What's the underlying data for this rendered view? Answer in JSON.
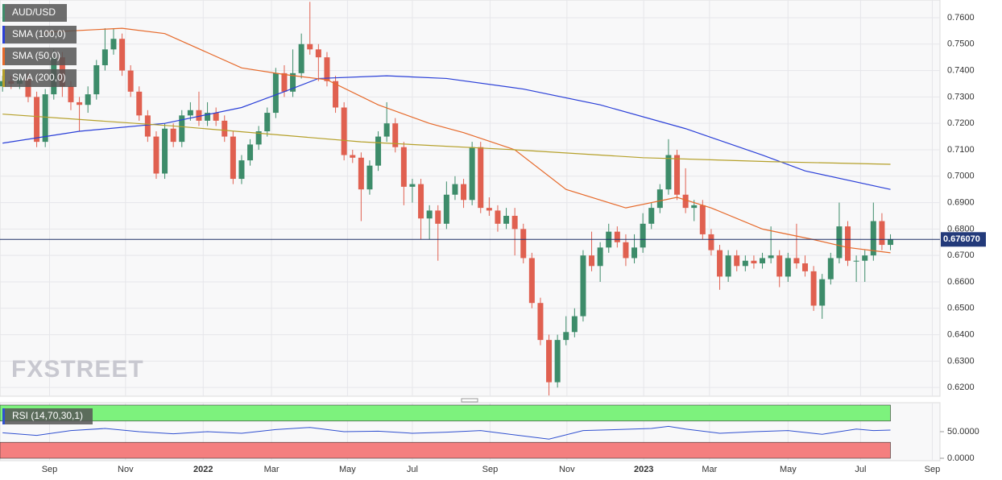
{
  "chart_data": [
    {
      "type": "candlestick",
      "xlim": [
        -0.3,
        109.8
      ],
      "xticks": [
        {
          "value": 5.5,
          "label": "Sep"
        },
        {
          "value": 14.4,
          "label": "Nov"
        },
        {
          "value": 23.5,
          "label": "2022"
        },
        {
          "value": 31.5,
          "label": "Mar"
        },
        {
          "value": 40.4,
          "label": "May"
        },
        {
          "value": 48.0,
          "label": "Jul"
        },
        {
          "value": 57.1,
          "label": "Sep"
        },
        {
          "value": 66.1,
          "label": "Nov"
        },
        {
          "value": 75.1,
          "label": "2023"
        },
        {
          "value": 82.8,
          "label": "Mar"
        },
        {
          "value": 92.0,
          "label": "May"
        },
        {
          "value": 100.5,
          "label": "Jul"
        },
        {
          "value": 108.9,
          "label": "Sep"
        }
      ],
      "ylim": [
        0.6167,
        0.7667
      ],
      "yticks": [
        {
          "value": 0.62,
          "label": "0.6200"
        },
        {
          "value": 0.63,
          "label": "0.6300"
        },
        {
          "value": 0.64,
          "label": "0.6400"
        },
        {
          "value": 0.65,
          "label": "0.6500"
        },
        {
          "value": 0.66,
          "label": "0.6600"
        },
        {
          "value": 0.67,
          "label": "0.6700"
        },
        {
          "value": 0.68,
          "label": "0.6800"
        },
        {
          "value": 0.69,
          "label": "0.6900"
        },
        {
          "value": 0.7,
          "label": "0.7000"
        },
        {
          "value": 0.71,
          "label": "0.7100"
        },
        {
          "value": 0.72,
          "label": "0.7200"
        },
        {
          "value": 0.73,
          "label": "0.7300"
        },
        {
          "value": 0.74,
          "label": "0.7400"
        },
        {
          "value": 0.75,
          "label": "0.7500"
        },
        {
          "value": 0.76,
          "label": "0.7600"
        }
      ],
      "grid": true,
      "watermark": "FXSTREET",
      "last_price": {
        "value": 0.67607,
        "label": "0.676070"
      },
      "series": [
        {
          "name": "AUD/USD",
          "color": "#3d8c6a",
          "up_color": "#3d8c6a",
          "down_color": "#e06050",
          "open": [
            0.734,
            0.736,
            0.735,
            0.737,
            0.73,
            0.713,
            0.731,
            0.745,
            0.734,
            0.728,
            0.727,
            0.731,
            0.742,
            0.748,
            0.752,
            0.74,
            0.732,
            0.723,
            0.715,
            0.701,
            0.718,
            0.713,
            0.723,
            0.725,
            0.721,
            0.724,
            0.721,
            0.715,
            0.699,
            0.706,
            0.712,
            0.717,
            0.724,
            0.739,
            0.732,
            0.739,
            0.75,
            0.748,
            0.745,
            0.736,
            0.726,
            0.708,
            0.707,
            0.695,
            0.704,
            0.715,
            0.72,
            0.711,
            0.696,
            0.697,
            0.684,
            0.687,
            0.682,
            0.693,
            0.697,
            0.691,
            0.711,
            0.688,
            0.687,
            0.682,
            0.685,
            0.68,
            0.669,
            0.652,
            0.638,
            0.622,
            0.638,
            0.641,
            0.647,
            0.67,
            0.666,
            0.673,
            0.679,
            0.675,
            0.669,
            0.673,
            0.682,
            0.688,
            0.695,
            0.708,
            0.693,
            0.688,
            0.689,
            0.678,
            0.672,
            0.662,
            0.67,
            0.666,
            0.668,
            0.667,
            0.669,
            0.67,
            0.662,
            0.669,
            0.667,
            0.664,
            0.651,
            0.661,
            0.669,
            0.681,
            0.668,
            0.668,
            0.67,
            0.683,
            0.674
          ],
          "high": [
            0.738,
            0.738,
            0.739,
            0.739,
            0.732,
            0.733,
            0.748,
            0.747,
            0.736,
            0.73,
            0.734,
            0.744,
            0.756,
            0.756,
            0.754,
            0.742,
            0.734,
            0.725,
            0.717,
            0.72,
            0.72,
            0.725,
            0.728,
            0.732,
            0.728,
            0.726,
            0.723,
            0.717,
            0.708,
            0.714,
            0.719,
            0.726,
            0.741,
            0.742,
            0.748,
            0.754,
            0.766,
            0.75,
            0.747,
            0.738,
            0.728,
            0.71,
            0.709,
            0.706,
            0.717,
            0.728,
            0.722,
            0.713,
            0.699,
            0.699,
            0.689,
            0.689,
            0.698,
            0.7,
            0.699,
            0.713,
            0.713,
            0.692,
            0.689,
            0.688,
            0.688,
            0.682,
            0.671,
            0.654,
            0.64,
            0.64,
            0.647,
            0.65,
            0.672,
            0.679,
            0.675,
            0.682,
            0.681,
            0.678,
            0.678,
            0.686,
            0.69,
            0.697,
            0.714,
            0.71,
            0.703,
            0.691,
            0.691,
            0.68,
            0.674,
            0.672,
            0.672,
            0.67,
            0.67,
            0.671,
            0.681,
            0.672,
            0.671,
            0.682,
            0.67,
            0.666,
            0.663,
            0.671,
            0.69,
            0.683,
            0.67,
            0.672,
            0.69,
            0.686,
            0.678
          ],
          "low": [
            0.732,
            0.733,
            0.733,
            0.728,
            0.711,
            0.711,
            0.729,
            0.73,
            0.725,
            0.717,
            0.724,
            0.729,
            0.74,
            0.746,
            0.738,
            0.73,
            0.721,
            0.713,
            0.699,
            0.699,
            0.711,
            0.711,
            0.721,
            0.719,
            0.719,
            0.719,
            0.713,
            0.697,
            0.697,
            0.704,
            0.71,
            0.715,
            0.722,
            0.73,
            0.73,
            0.737,
            0.746,
            0.736,
            0.734,
            0.724,
            0.706,
            0.705,
            0.683,
            0.693,
            0.702,
            0.713,
            0.709,
            0.689,
            0.69,
            0.676,
            0.676,
            0.668,
            0.68,
            0.691,
            0.688,
            0.689,
            0.686,
            0.685,
            0.679,
            0.68,
            0.67,
            0.667,
            0.65,
            0.636,
            0.617,
            0.62,
            0.636,
            0.639,
            0.645,
            0.664,
            0.66,
            0.671,
            0.673,
            0.666,
            0.667,
            0.671,
            0.68,
            0.686,
            0.693,
            0.691,
            0.686,
            0.683,
            0.676,
            0.67,
            0.657,
            0.66,
            0.664,
            0.664,
            0.665,
            0.665,
            0.667,
            0.658,
            0.66,
            0.665,
            0.662,
            0.649,
            0.646,
            0.659,
            0.667,
            0.666,
            0.66,
            0.66,
            0.668,
            0.672,
            0.672
          ],
          "close": [
            0.736,
            0.735,
            0.737,
            0.73,
            0.713,
            0.731,
            0.745,
            0.734,
            0.728,
            0.727,
            0.731,
            0.742,
            0.748,
            0.752,
            0.74,
            0.732,
            0.723,
            0.715,
            0.701,
            0.718,
            0.713,
            0.723,
            0.725,
            0.721,
            0.724,
            0.721,
            0.715,
            0.699,
            0.706,
            0.712,
            0.717,
            0.724,
            0.739,
            0.732,
            0.739,
            0.75,
            0.748,
            0.745,
            0.736,
            0.726,
            0.708,
            0.707,
            0.695,
            0.704,
            0.715,
            0.72,
            0.711,
            0.696,
            0.697,
            0.684,
            0.687,
            0.682,
            0.693,
            0.697,
            0.691,
            0.711,
            0.688,
            0.687,
            0.682,
            0.685,
            0.68,
            0.669,
            0.652,
            0.638,
            0.622,
            0.638,
            0.641,
            0.647,
            0.67,
            0.666,
            0.673,
            0.679,
            0.675,
            0.669,
            0.673,
            0.682,
            0.688,
            0.695,
            0.708,
            0.693,
            0.688,
            0.689,
            0.678,
            0.672,
            0.662,
            0.67,
            0.666,
            0.668,
            0.667,
            0.669,
            0.67,
            0.662,
            0.669,
            0.667,
            0.664,
            0.651,
            0.661,
            0.669,
            0.681,
            0.668,
            0.668,
            0.67,
            0.683,
            0.674,
            0.676
          ]
        },
        {
          "name": "SMA (100,0)",
          "color": "#2a3fd8",
          "x": [
            0,
            9,
            19,
            28,
            33,
            37,
            45,
            52,
            61,
            70,
            80,
            89,
            94,
            104
          ],
          "values": [
            0.7125,
            0.717,
            0.72,
            0.726,
            0.732,
            0.737,
            0.738,
            0.737,
            0.733,
            0.727,
            0.718,
            0.708,
            0.702,
            0.695
          ]
        },
        {
          "name": "SMA (50,0)",
          "color": "#e6692a",
          "x": [
            5,
            14,
            19,
            28,
            33,
            38,
            44,
            50,
            54,
            60,
            66,
            73,
            79,
            83,
            89,
            95,
            99,
            104
          ],
          "values": [
            0.7545,
            0.756,
            0.754,
            0.741,
            0.7385,
            0.7365,
            0.727,
            0.72,
            0.7165,
            0.71,
            0.695,
            0.688,
            0.692,
            0.688,
            0.68,
            0.676,
            0.673,
            0.671
          ]
        },
        {
          "name": "SMA (200,0)",
          "color": "#b5a02a",
          "x": [
            0,
            20,
            42,
            60,
            75,
            90,
            104
          ],
          "values": [
            0.7235,
            0.719,
            0.713,
            0.71,
            0.707,
            0.7055,
            0.7045
          ]
        }
      ]
    },
    {
      "type": "line",
      "title": "RSI (14,70,30,1)",
      "color": "#3050d0",
      "ylim": [
        0,
        100
      ],
      "yticks": [
        {
          "value": 50,
          "label": "50.0000"
        },
        {
          "value": 0,
          "label": "0.0000"
        }
      ],
      "bands": [
        {
          "from": 70,
          "to": 100,
          "color": "#7df27d"
        },
        {
          "from": 0,
          "to": 30,
          "color": "#f47f7f"
        }
      ],
      "x": [
        0,
        4,
        8,
        12,
        16,
        20,
        24,
        28,
        32,
        36,
        40,
        44,
        48,
        52,
        56,
        60,
        64,
        68,
        72,
        76,
        78,
        80,
        84,
        88,
        92,
        96,
        100,
        102,
        104
      ],
      "values": [
        48,
        43,
        52,
        56,
        50,
        46,
        50,
        47,
        54,
        58,
        50,
        51,
        47,
        49,
        52,
        44,
        36,
        52,
        54,
        56,
        60,
        55,
        47,
        50,
        52,
        45,
        55,
        52,
        53
      ]
    }
  ]
}
